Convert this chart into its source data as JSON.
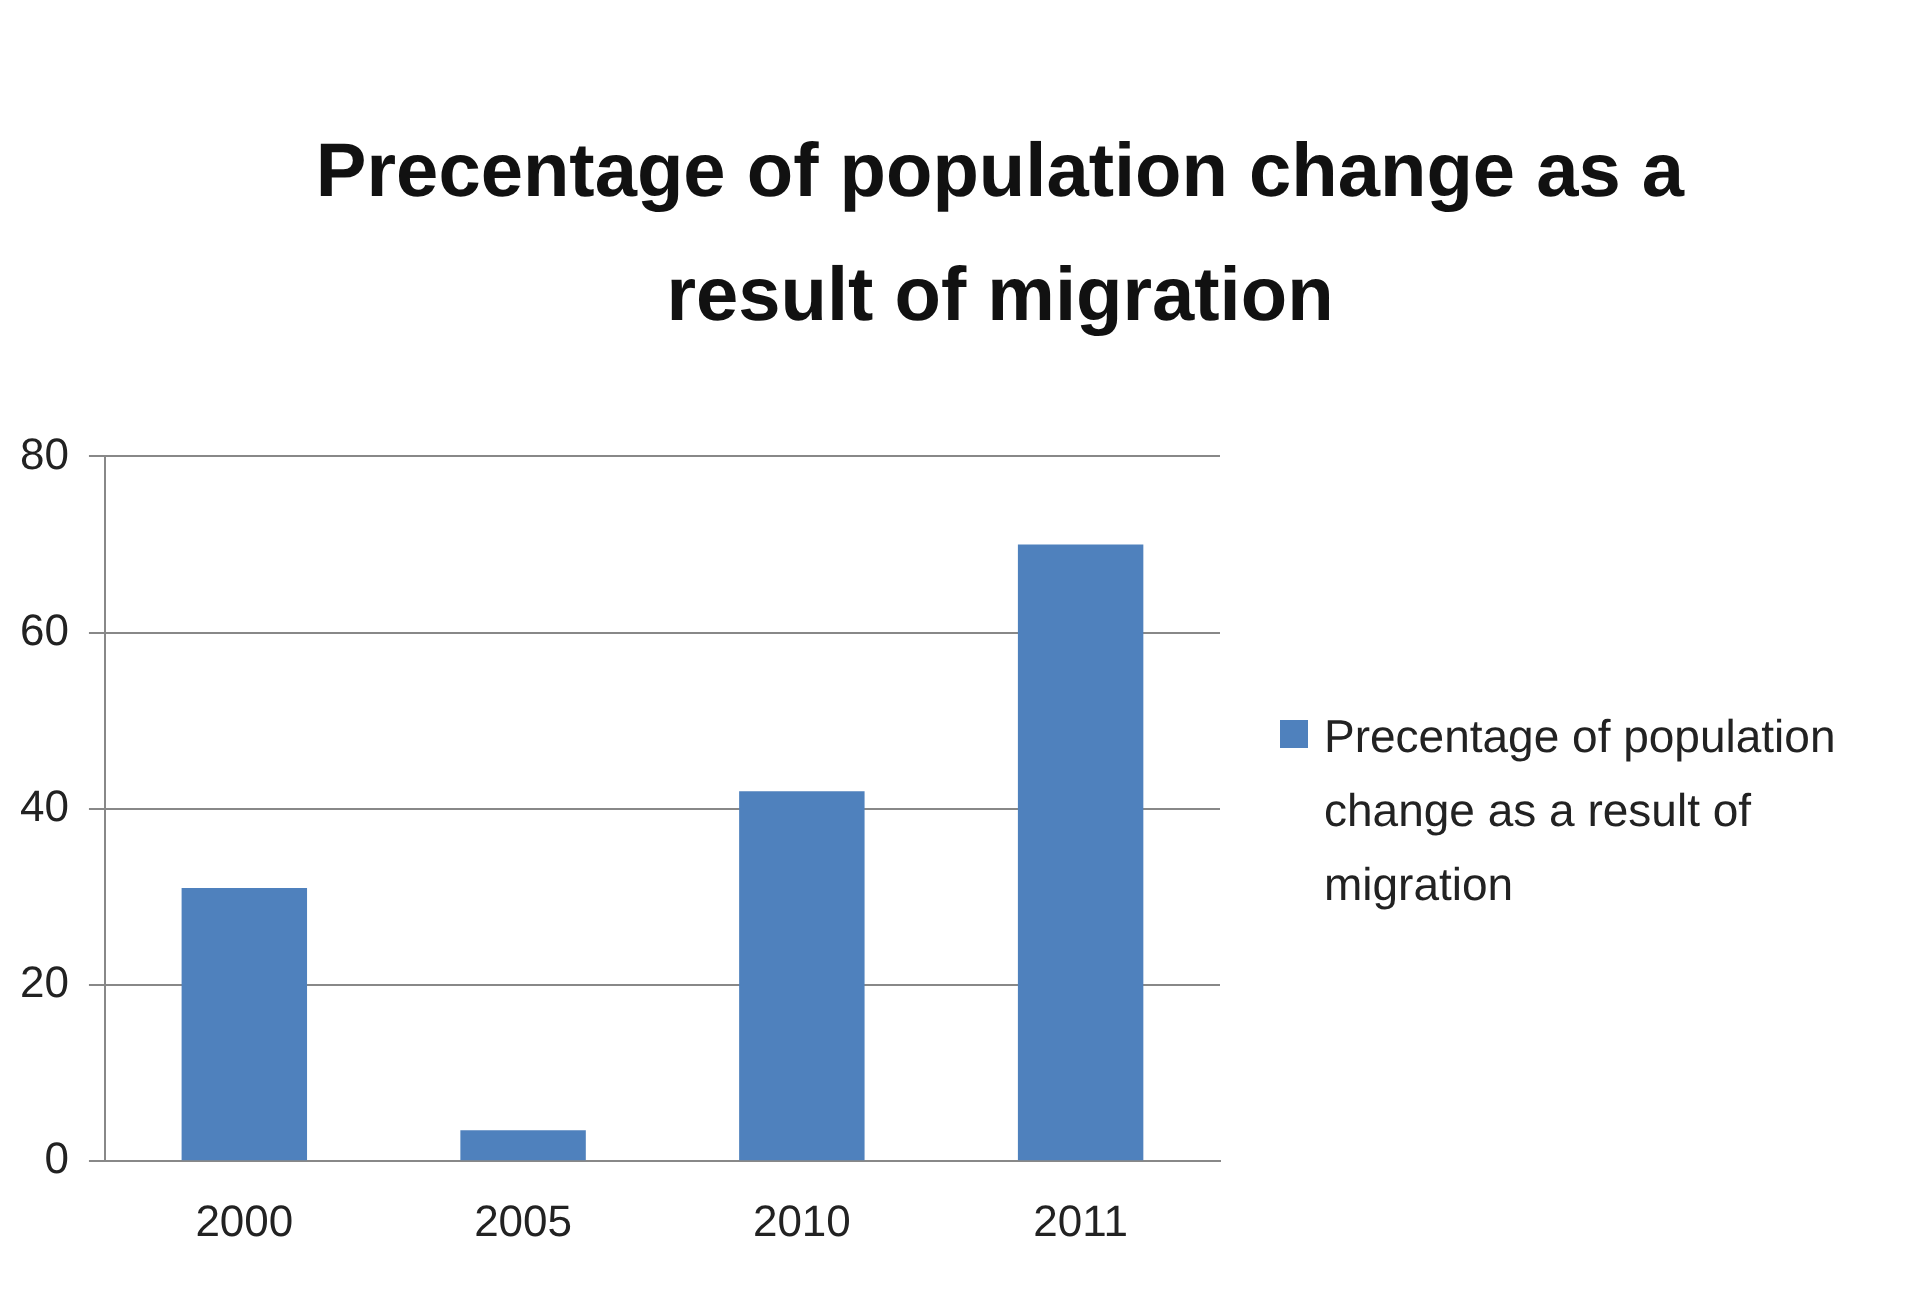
{
  "chart_data": {
    "type": "bar",
    "title": "Precentage of population change as a result of migration",
    "categories": [
      "2000",
      "2005",
      "2010",
      "2011"
    ],
    "series": [
      {
        "name": "Precentage of population change as a result of migration",
        "color": "#4f81bd",
        "values": [
          31,
          3.5,
          42,
          70
        ]
      }
    ],
    "ylim": [
      0,
      80
    ],
    "yticks": [
      0,
      20,
      40,
      60,
      80
    ],
    "grid": "y",
    "legend": "right"
  }
}
